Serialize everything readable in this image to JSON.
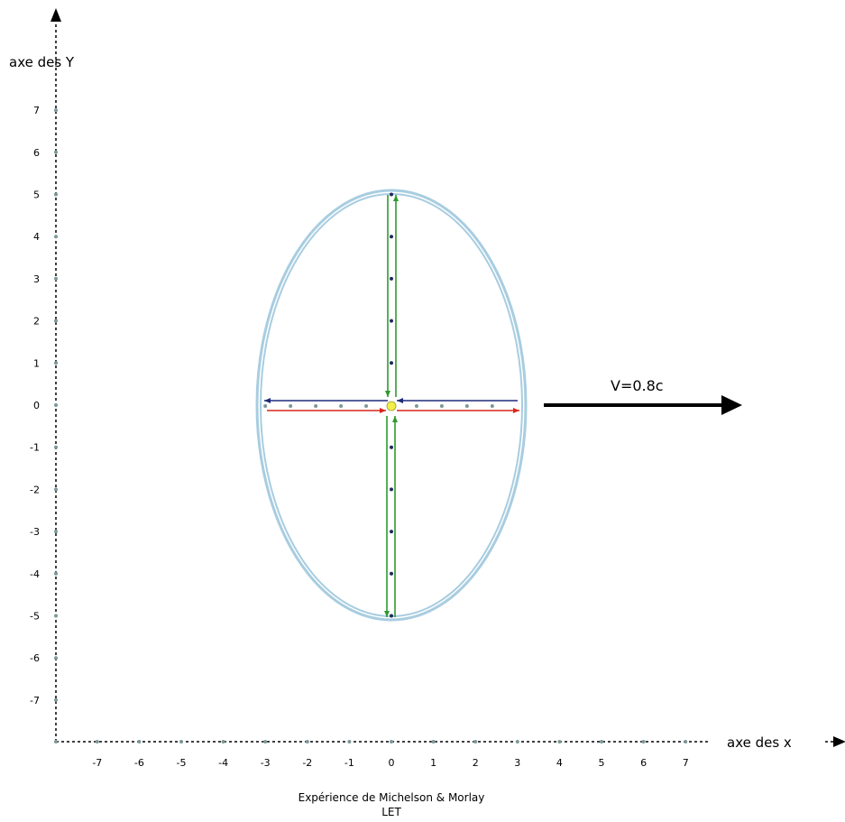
{
  "labels": {
    "y_axis_title": "axe des Y",
    "x_axis_title": "axe des x",
    "velocity": "V=0.8c",
    "caption_line1": "Expérience de Michelson & Morlay",
    "caption_line2": "LET"
  },
  "axes": {
    "x_ticks": [
      "-7",
      "-6",
      "-5",
      "-4",
      "-3",
      "-2",
      "-1",
      "0",
      "1",
      "2",
      "3",
      "4",
      "5",
      "6",
      "7"
    ],
    "y_ticks": [
      "7",
      "6",
      "5",
      "4",
      "3",
      "2",
      "1",
      "0",
      "-1",
      "-2",
      "-3",
      "-4",
      "-5",
      "-6",
      "-7"
    ]
  },
  "ellipse": {
    "semi_axis_x": 3,
    "semi_axis_y": 5
  },
  "colors": {
    "ellipse": "#a8cde0",
    "forward_ray": "#d9261c",
    "return_ray": "#1f2a7a",
    "vertical_rays": "#2e9a2e",
    "source": "#f2ef4a",
    "velocity_arrow": "#000000",
    "axis_dots": "#7c9898",
    "axis_point_dots": "#1f2a5c"
  }
}
